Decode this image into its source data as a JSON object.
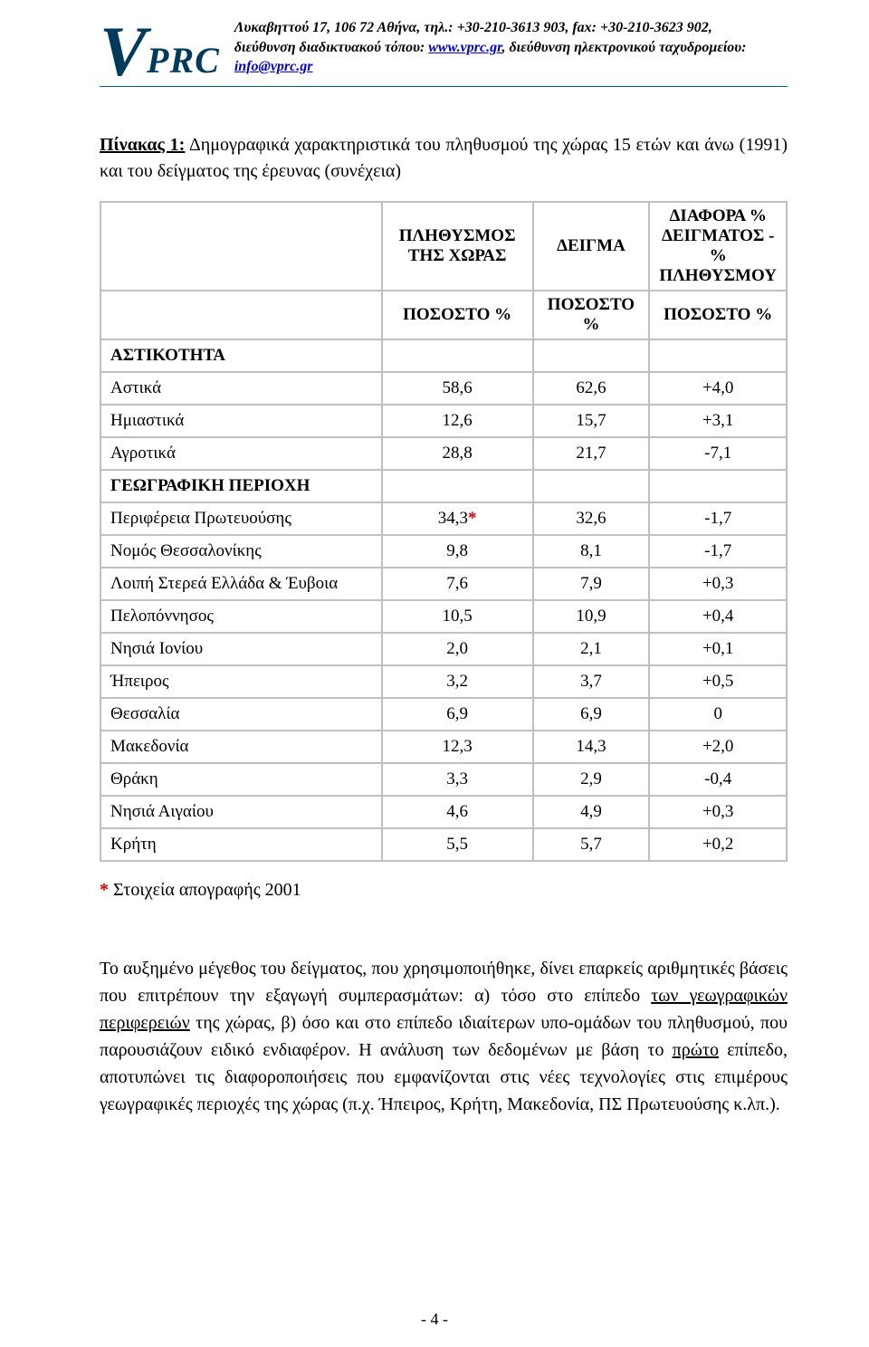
{
  "header": {
    "logo_v": "V",
    "logo_prc": "PRC",
    "line1": "Λυκαβηττού 17, 106 72 Αθήνα, τηλ.: +30-210-3613 903, fax: +30-210-3623 902,",
    "line2_pre": "διεύθυνση διαδικτυακού τόπου: ",
    "website": "www.vprc.gr",
    "line2_mid": ", διεύθυνση ηλεκτρονικού ταχυδρομείου: ",
    "email": "info@vprc.gr"
  },
  "title": {
    "lead": "Πίνακας 1:",
    "rest": " Δημογραφικά χαρακτηριστικά του πληθυσμού της χώρας 15 ετών και άνω (1991)  και του δείγματος της έρευνας (συνέχεια)"
  },
  "table": {
    "headers": {
      "h1": "",
      "h2": "ΠΛΗΘΥΣΜΟΣ ΤΗΣ ΧΩΡΑΣ",
      "h3": "ΔΕΙΓΜΑ",
      "h4": "ΔΙΑΦΟΡΑ % ΔΕΙΓΜΑΤΟΣ -% ΠΛΗΘΥΣΜΟΥ",
      "s2": "ΠΟΣΟΣΤΟ %",
      "s3": "ΠΟΣΟΣΤΟ %",
      "s4": "ΠΟΣΟΣΤΟ %"
    },
    "rows": [
      {
        "label": "ΑΣΤΙΚΟΤΗΤΑ",
        "section": true,
        "c1": "",
        "c2": "",
        "c3": ""
      },
      {
        "label": "Αστικά",
        "c1": "58,6",
        "c2": "62,6",
        "c3": "+4,0"
      },
      {
        "label": "Ημιαστικά",
        "c1": "12,6",
        "c2": "15,7",
        "c3": "+3,1"
      },
      {
        "label": "Αγροτικά",
        "c1": "28,8",
        "c2": "21,7",
        "c3": "-7,1"
      },
      {
        "label": "ΓΕΩΓΡΑΦΙΚΗ ΠΕΡΙΟΧΗ",
        "section": true,
        "c1": "",
        "c2": "",
        "c3": ""
      },
      {
        "label": "Περιφέρεια Πρωτευούσης",
        "c1": "34,3",
        "star": "*",
        "c2": "32,6",
        "c3": "-1,7"
      },
      {
        "label": "Νομός Θεσσαλονίκης",
        "c1": "9,8",
        "c2": "8,1",
        "c3": "-1,7"
      },
      {
        "label": "Λοιπή Στερεά Ελλάδα & Έυβοια",
        "c1": "7,6",
        "c2": "7,9",
        "c3": "+0,3"
      },
      {
        "label": "Πελοπόννησος",
        "c1": "10,5",
        "c2": "10,9",
        "c3": "+0,4"
      },
      {
        "label": "Νησιά Ιονίου",
        "c1": "2,0",
        "c2": "2,1",
        "c3": "+0,1"
      },
      {
        "label": "Ήπειρος",
        "c1": "3,2",
        "c2": "3,7",
        "c3": "+0,5"
      },
      {
        "label": "Θεσσαλία",
        "c1": "6,9",
        "c2": "6,9",
        "c3": "0"
      },
      {
        "label": "Μακεδονία",
        "c1": "12,3",
        "c2": "14,3",
        "c3": "+2,0"
      },
      {
        "label": "Θράκη",
        "c1": "3,3",
        "c2": "2,9",
        "c3": "-0,4"
      },
      {
        "label": "Νησιά Αιγαίου",
        "c1": "4,6",
        "c2": "4,9",
        "c3": "+0,3"
      },
      {
        "label": "Κρήτη",
        "c1": "5,5",
        "c2": "5,7",
        "c3": "+0,2"
      }
    ]
  },
  "footnote": {
    "star": "*",
    "text": " Στοιχεία απογραφής 2001"
  },
  "paragraph": {
    "p1": "Το αυξημένο μέγεθος του δείγματος, που χρησιμοποιήθηκε, δίνει επαρκείς αριθμητικές βάσεις που επιτρέπουν την εξαγωγή συμπερασμάτων: α) τόσο στο επίπεδο ",
    "u1": "των γεωγραφικών περιφερειών",
    "p2": " της χώρας, β) όσο και στο επίπεδο ιδιαίτερων υπο-ομάδων του πληθυσμού,  που παρουσιάζουν ειδικό ενδιαφέρον. Η ανάλυση των δεδομένων με βάση το ",
    "u2": "πρώτο",
    "p3": " επίπεδο, αποτυπώνει τις διαφοροποιήσεις που εμφανίζονται στις νέες τεχνολογίες στις επιμέρους γεωγραφικές περιοχές της χώρας (π.χ. Ήπειρος, Κρήτη, Μακεδονία, ΠΣ Πρωτευούσης κ.λπ.)."
  },
  "page_number": "- 4 -",
  "style": {
    "border_color": "#c0c0c0",
    "link_color": "#0000cc",
    "star_color": "#cc0000",
    "logo_color": "#003b5c",
    "header_rule_color": "#006666"
  }
}
